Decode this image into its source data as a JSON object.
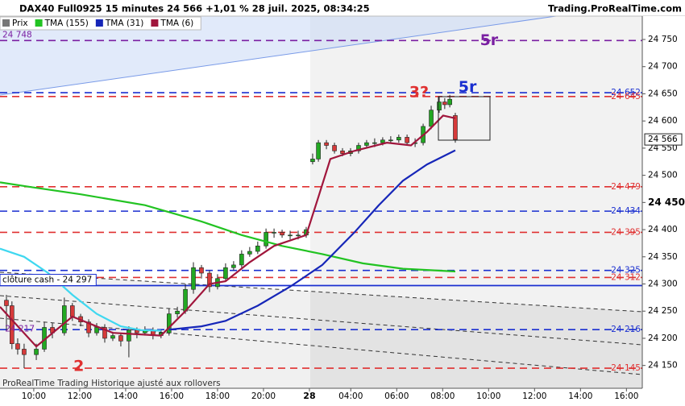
{
  "chart_data": {
    "type": "candlestick",
    "title": "DAX40 Full0925 15 minutes 24 566 +1,01 % 28 juil. 2025, 08:34:25",
    "source": "Trading.ProRealTime.com",
    "footer": "ProRealTime Trading  Historique ajusté aux rollovers",
    "xlim": [
      8.53,
      36.49
    ],
    "xticks": [
      {
        "value": 10,
        "label": "10:00"
      },
      {
        "value": 12,
        "label": "12:00"
      },
      {
        "value": 14,
        "label": "14:00"
      },
      {
        "value": 16,
        "label": "16:00"
      },
      {
        "value": 18,
        "label": "18:00"
      },
      {
        "value": 20,
        "label": "20:00"
      },
      {
        "value": 22,
        "label": "28"
      },
      {
        "value": 23.8,
        "label": "04:00"
      },
      {
        "value": 25.8,
        "label": "06:00"
      },
      {
        "value": 27.8,
        "label": "08:00"
      },
      {
        "value": 29.8,
        "label": "10:00"
      },
      {
        "value": 31.8,
        "label": "12:00"
      },
      {
        "value": 33.8,
        "label": "14:00"
      },
      {
        "value": 35.8,
        "label": "16:00"
      }
    ],
    "ylim": [
      24108,
      24793
    ],
    "yticks": [
      {
        "value": 24150,
        "label": "24 150"
      },
      {
        "value": 24200,
        "label": "24 200"
      },
      {
        "value": 24250,
        "label": "24 250"
      },
      {
        "value": 24300,
        "label": "24 300"
      },
      {
        "value": 24350,
        "label": "24 350"
      },
      {
        "value": 24400,
        "label": "24 400"
      },
      {
        "value": 24450,
        "label": "24 450"
      },
      {
        "value": 24500,
        "label": "24 500"
      },
      {
        "value": 24550,
        "label": "24 550"
      },
      {
        "value": 24600,
        "label": "24 600"
      },
      {
        "value": 24650,
        "label": "24 650"
      },
      {
        "value": 24700,
        "label": "24 700"
      },
      {
        "value": 24750,
        "label": "24 750"
      }
    ],
    "series": [
      {
        "name": "Prix",
        "type": "candlestick",
        "up_color": "#22a822",
        "down_color": "#d63a3a",
        "x": [
          8.81,
          9.05,
          9.3,
          9.58,
          10.11,
          10.46,
          10.81,
          11.33,
          11.68,
          12.04,
          12.39,
          12.74,
          13.09,
          13.44,
          13.79,
          14.14,
          14.49,
          14.84,
          15.19,
          15.54,
          15.89,
          16.25,
          16.6,
          16.95,
          17.3,
          17.65,
          18,
          18.35,
          18.7,
          19.05,
          19.4,
          19.75,
          20.11,
          20.46,
          20.81,
          21.16,
          21.51,
          21.86,
          22.14,
          22.39,
          22.74,
          23.09,
          23.44,
          23.79,
          24.14,
          24.49,
          24.84,
          25.19,
          25.54,
          25.89,
          26.25,
          26.6,
          26.95,
          27.3,
          27.65,
          27.89,
          28.11,
          28.35
        ],
        "open": [
          24270,
          24260,
          24190,
          24180,
          24170,
          24180,
          24220,
          24210,
          24260,
          24240,
          24230,
          24210,
          24220,
          24200,
          24205,
          24195,
          24215,
          24210,
          24215,
          24205,
          24210,
          24245,
          24250,
          24290,
          24330,
          24320,
          24295,
          24310,
          24330,
          24335,
          24355,
          24360,
          24370,
          24395,
          24395,
          24390,
          24390,
          24390,
          24525,
          24530,
          24560,
          24555,
          24545,
          24540,
          24545,
          24555,
          24560,
          24560,
          24565,
          24565,
          24570,
          24560,
          24560,
          24590,
          24620,
          24635,
          24630,
          24610
        ],
        "high": [
          24280,
          24268,
          24200,
          24190,
          24190,
          24230,
          24228,
          24275,
          24265,
          24245,
          24235,
          24228,
          24226,
          24212,
          24210,
          24222,
          24220,
          24222,
          24220,
          24215,
          24255,
          24258,
          24300,
          24340,
          24335,
          24325,
          24318,
          24338,
          24342,
          24362,
          24368,
          24378,
          24402,
          24402,
          24400,
          24398,
          24398,
          24405,
          24540,
          24565,
          24565,
          24560,
          24550,
          24550,
          24560,
          24565,
          24568,
          24570,
          24572,
          24575,
          24575,
          24568,
          24595,
          24628,
          24645,
          24642,
          24648,
          24615
        ],
        "low": [
          24215,
          24180,
          24170,
          24145,
          24160,
          24175,
          24200,
          24205,
          24232,
          24222,
          24202,
          24205,
          24192,
          24195,
          24185,
          24165,
          24200,
          24205,
          24198,
          24200,
          24205,
          24238,
          24245,
          24282,
          24310,
          24285,
          24290,
          24305,
          24325,
          24330,
          24350,
          24355,
          24365,
          24385,
          24385,
          24382,
          24382,
          24385,
          24520,
          24525,
          24548,
          24540,
          24535,
          24535,
          24540,
          24550,
          24552,
          24555,
          24558,
          24560,
          24555,
          24552,
          24555,
          24585,
          24615,
          24622,
          24625,
          24560
        ],
        "close": [
          24260,
          24190,
          24180,
          24170,
          24180,
          24220,
          24210,
          24260,
          24240,
          24230,
          24210,
          24220,
          24200,
          24205,
          24195,
          24215,
          24210,
          24215,
          24205,
          24210,
          24245,
          24250,
          24290,
          24330,
          24320,
          24295,
          24310,
          24330,
          24335,
          24355,
          24360,
          24370,
          24395,
          24395,
          24390,
          24390,
          24390,
          24400,
          24530,
          24560,
          24555,
          24545,
          24540,
          24545,
          24555,
          24560,
          24560,
          24565,
          24565,
          24570,
          24560,
          24560,
          24590,
          24620,
          24635,
          24630,
          24640,
          24566
        ]
      },
      {
        "name": "TMA (155)",
        "type": "line",
        "color": "#22c322",
        "x": [
          8.53,
          9.93,
          12.04,
          14.84,
          17.3,
          19.05,
          20.81,
          22.56,
          24.32,
          26.07,
          28.35
        ],
        "values": [
          24487,
          24478,
          24465,
          24445,
          24415,
          24390,
          24370,
          24355,
          24338,
          24328,
          24323
        ]
      },
      {
        "name": "TMA (31)",
        "type": "line",
        "color": "#1626b8",
        "x": [
          15.89,
          17.3,
          18.35,
          19.75,
          21.16,
          22.56,
          23.96,
          25.02,
          26.07,
          27.12,
          28.35
        ],
        "values": [
          24216,
          24222,
          24232,
          24260,
          24295,
          24335,
          24395,
          24445,
          24490,
          24520,
          24546
        ]
      },
      {
        "type": "line",
        "color": "#3fd8f0",
        "x": [
          8.53,
          9.58,
          10.63,
          11.68,
          12.74,
          13.79,
          14.67,
          15.54
        ],
        "values": [
          24365,
          24350,
          24320,
          24280,
          24245,
          24222,
          24215,
          24214
        ]
      },
      {
        "name": "TMA (6)",
        "type": "line",
        "color": "#a0163c",
        "x": [
          8.53,
          10.11,
          11.68,
          13.44,
          15.54,
          16.6,
          17.65,
          18.35,
          19.4,
          20.46,
          21.86,
          22.39,
          22.91,
          23.96,
          25.37,
          26.42,
          27.12,
          27.82,
          28.35
        ],
        "values": [
          24258,
          24185,
          24240,
          24210,
          24205,
          24250,
          24300,
          24305,
          24340,
          24370,
          24390,
          24460,
          24530,
          24545,
          24560,
          24555,
          24580,
          24610,
          24605
        ]
      }
    ],
    "levels": [
      {
        "value": 24748,
        "label": "24 748",
        "color": "#7a1fa2",
        "side": "left",
        "dash": true
      },
      {
        "value": 24652,
        "label": "24 652",
        "color": "#1a2fd0",
        "side": "right",
        "dash": true
      },
      {
        "value": 24645,
        "label": "24 645",
        "color": "#e03030",
        "side": "right",
        "dash": true
      },
      {
        "value": 24479,
        "label": "24 479",
        "color": "#e03030",
        "side": "right",
        "dash": true
      },
      {
        "value": 24434,
        "label": "24 434",
        "color": "#1a2fd0",
        "side": "right",
        "dash": true
      },
      {
        "value": 24395,
        "label": "24 395",
        "color": "#e03030",
        "side": "right",
        "dash": true
      },
      {
        "value": 24325,
        "label": "24 325",
        "color": "#1a2fd0",
        "side": "right",
        "dash": true
      },
      {
        "value": 24312,
        "label": "24 312",
        "color": "#e03030",
        "side": "right",
        "dash": true
      },
      {
        "value": 24297,
        "label": "clôture cash -  24 297",
        "color": "#1a2fd0",
        "side": "left",
        "dash": false
      },
      {
        "value": 24216,
        "label": "24 216",
        "color": "#1a2fd0",
        "side": "right",
        "dash": true
      },
      {
        "value": 24145,
        "label": "24 145",
        "color": "#e03030",
        "side": "right",
        "dash": true
      }
    ],
    "last_price": {
      "value": 24566,
      "label": "24 566"
    },
    "annotations": [
      {
        "text": "5r",
        "x": 29.82,
        "y": 24748,
        "color": "#7a1fa2"
      },
      {
        "text": "5r",
        "x": 28.88,
        "y": 24662,
        "color": "#1a2fd0"
      },
      {
        "text": "3?",
        "x": 26.77,
        "y": 24652,
        "color": "#e03030"
      },
      {
        "text": "2",
        "x": 11.96,
        "y": 24148,
        "color": "#e03030"
      },
      {
        "text": "24 217",
        "x": 8.75,
        "y": 24217,
        "color": "#7a1fa2"
      }
    ]
  }
}
